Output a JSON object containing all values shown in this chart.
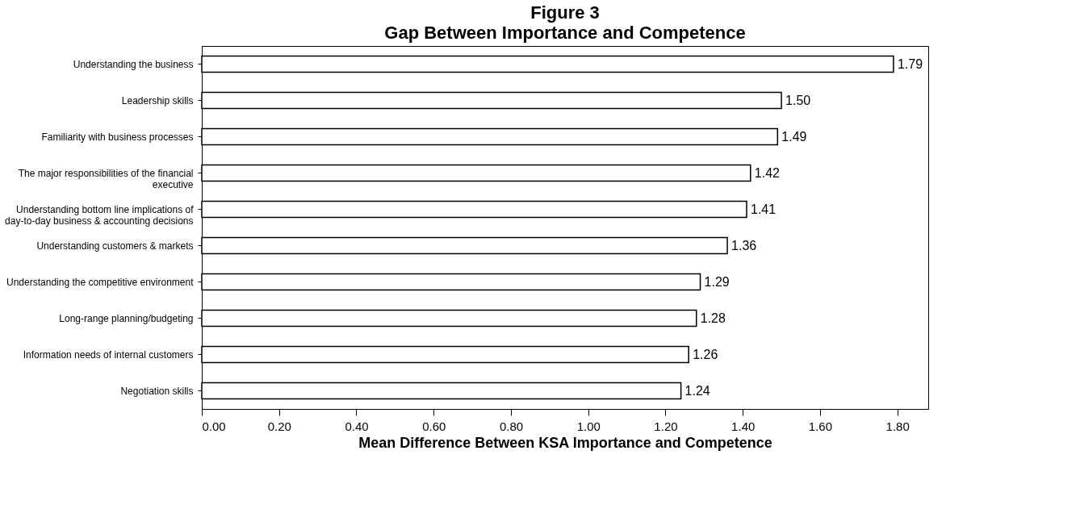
{
  "chart_data": {
    "type": "bar",
    "orientation": "horizontal",
    "title": "Figure 3",
    "subtitle": "Gap Between Importance and Competence",
    "xlabel": "Mean Difference Between KSA Importance and Competence",
    "categories": [
      "Understanding the business",
      "Leadership skills",
      "Familiarity with business processes",
      "The major responsibilities of the financial executive",
      "Understanding bottom line implications of day-to-day business & accounting decisions",
      "Understanding customers & markets",
      "Understanding the competitive environment",
      "Long-range planning/budgeting",
      "Information needs of internal customers",
      "Negotiation skills"
    ],
    "values": [
      1.79,
      1.5,
      1.49,
      1.42,
      1.41,
      1.36,
      1.29,
      1.28,
      1.26,
      1.24
    ],
    "value_labels": [
      "1.79",
      "1.50",
      "1.49",
      "1.42",
      "1.41",
      "1.36",
      "1.29",
      "1.28",
      "1.26",
      "1.24"
    ],
    "color": "#ffffff",
    "grid": false,
    "xlim": [
      0,
      1.88
    ],
    "xticks": [
      {
        "value": 0,
        "label": "0.00"
      },
      {
        "value": 0.2,
        "label": "0.20"
      },
      {
        "value": 0.4,
        "label": "0.40"
      },
      {
        "value": 0.6,
        "label": "0.60"
      },
      {
        "value": 0.8,
        "label": "0.80"
      },
      {
        "value": 1.0,
        "label": "1.00"
      },
      {
        "value": 1.2,
        "label": "1.20"
      },
      {
        "value": 1.4,
        "label": "1.40"
      },
      {
        "value": 1.6,
        "label": "1.60"
      },
      {
        "value": 1.8,
        "label": "1.80"
      }
    ]
  }
}
